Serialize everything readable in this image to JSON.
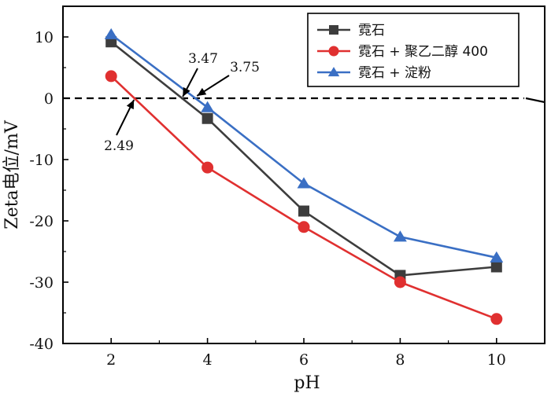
{
  "chart_data": {
    "type": "line",
    "xlabel": "pH",
    "ylabel": "Zeta电位/mV",
    "xlim": [
      1,
      11
    ],
    "ylim": [
      -40,
      15
    ],
    "xticks": [
      2,
      4,
      6,
      8,
      10
    ],
    "yticks": [
      10,
      0,
      -10,
      -20,
      -30,
      -40
    ],
    "x": [
      2,
      4,
      6,
      8,
      10
    ],
    "series": [
      {
        "name": "霓石",
        "values": [
          9.2,
          -3.3,
          -18.4,
          -28.9,
          -27.5
        ],
        "color": "#3d3d3d",
        "marker": "square"
      },
      {
        "name": "霓石 + 聚乙二醇 400",
        "values": [
          3.6,
          -11.3,
          -21.0,
          -30.0,
          -36.0
        ],
        "color": "#e03030",
        "marker": "circle"
      },
      {
        "name": "霓石 + 淀粉",
        "values": [
          10.4,
          -1.5,
          -13.9,
          -22.6,
          -26.0
        ],
        "color": "#3a6fc4",
        "marker": "triangle"
      }
    ],
    "reference_line": {
      "y": 0,
      "style": "dashed",
      "color": "#000000"
    },
    "annotations": [
      {
        "text": "3.47",
        "x": 3.47,
        "y": 0
      },
      {
        "text": "3.75",
        "x": 3.75,
        "y": 0
      },
      {
        "text": "2.49",
        "x": 2.49,
        "y": 0
      }
    ],
    "legend_position": "top-right"
  }
}
